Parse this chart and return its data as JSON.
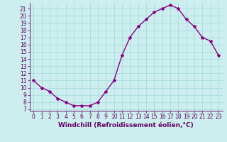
{
  "x": [
    0,
    1,
    2,
    3,
    4,
    5,
    6,
    7,
    8,
    9,
    10,
    11,
    12,
    13,
    14,
    15,
    16,
    17,
    18,
    19,
    20,
    21,
    22,
    23
  ],
  "y": [
    11.0,
    10.0,
    9.5,
    8.5,
    8.0,
    7.5,
    7.5,
    7.5,
    8.0,
    9.5,
    11.0,
    14.5,
    17.0,
    18.5,
    19.5,
    20.5,
    21.0,
    21.5,
    21.0,
    19.5,
    18.5,
    17.0,
    16.5,
    14.5
  ],
  "line_color": "#880088",
  "marker": "*",
  "marker_size": 3,
  "bg_color": "#cceeee",
  "grid_color": "#aadddd",
  "xlim": [
    -0.5,
    23.5
  ],
  "ylim": [
    6.8,
    21.8
  ],
  "yticks": [
    7,
    8,
    9,
    10,
    11,
    12,
    13,
    14,
    15,
    16,
    17,
    18,
    19,
    20,
    21
  ],
  "xticks": [
    0,
    1,
    2,
    3,
    4,
    5,
    6,
    7,
    8,
    9,
    10,
    11,
    12,
    13,
    14,
    15,
    16,
    17,
    18,
    19,
    20,
    21,
    22,
    23
  ],
  "xlabel": "Windchill (Refroidissement éolien,°C)",
  "tick_color": "#660066",
  "label_color": "#660066",
  "font_size": 5.5,
  "xlabel_fontsize": 6.5,
  "line_width": 1.0
}
